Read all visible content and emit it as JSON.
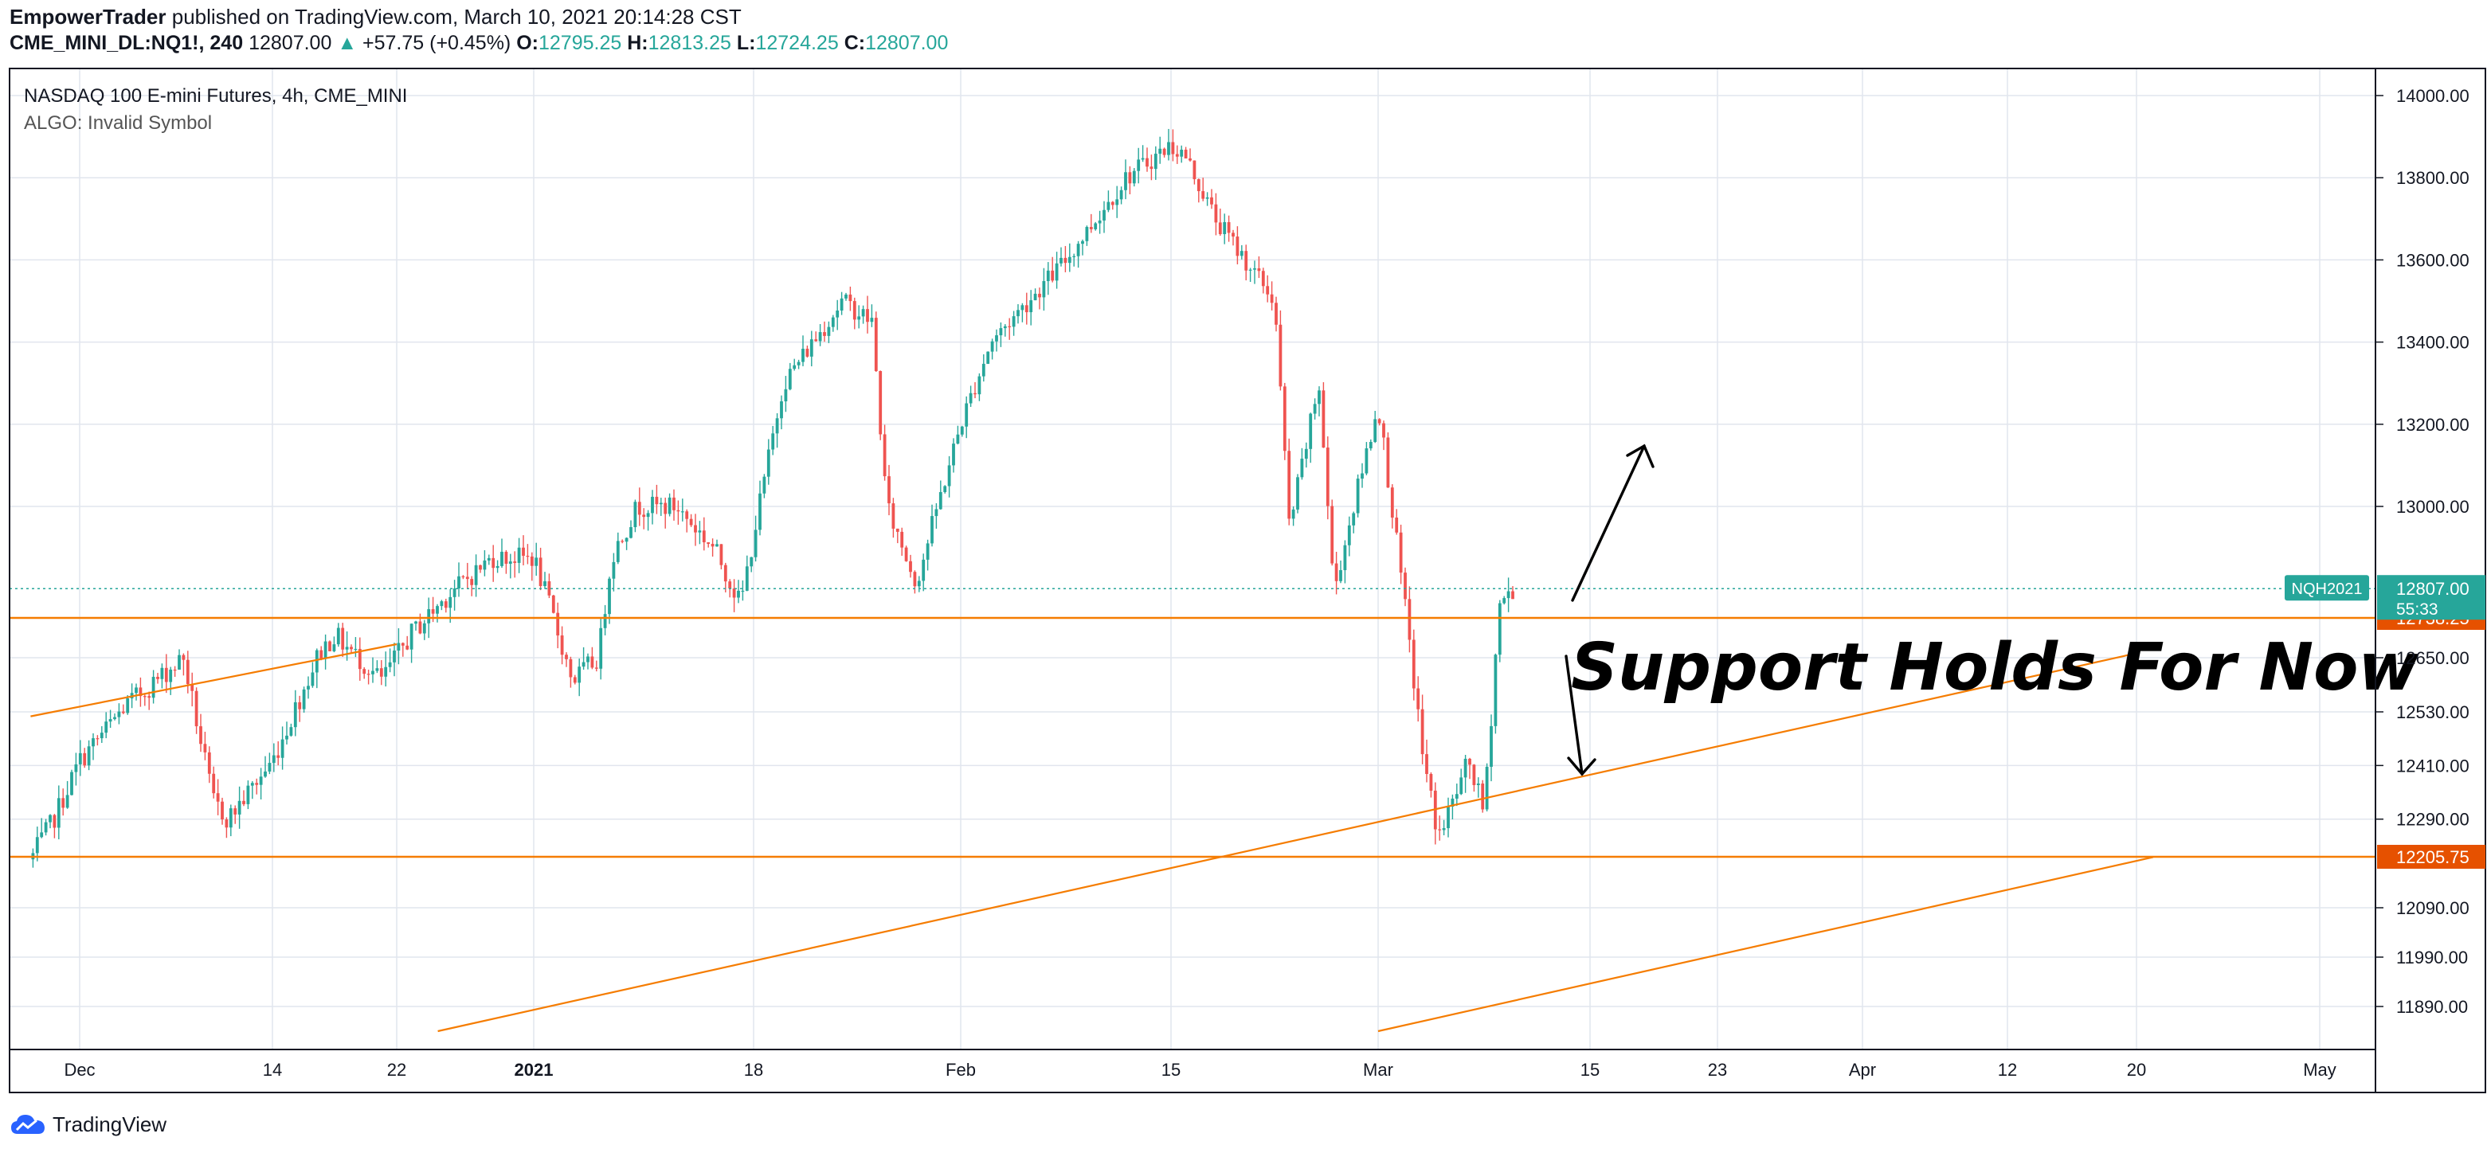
{
  "header": {
    "author": "EmpowerTrader",
    "published_text": "published on TradingView.com, March 10, 2021 20:14:28 CST",
    "symbol_interval": "CME_MINI_DL:NQ1!, 240",
    "last_price": "12807.00",
    "change_arrow": "▲",
    "change": "+57.75 (+0.45%)",
    "o_label": "O:",
    "o_value": "12795.25",
    "h_label": "H:",
    "h_value": "12813.25",
    "l_label": "L:",
    "l_value": "12724.25",
    "c_label": "C:",
    "c_value": "12807.00"
  },
  "legend": {
    "title": "NASDAQ 100 E-mini Futures, 4h, CME_MINI",
    "study": "ALGO: Invalid Symbol"
  },
  "footer": {
    "brand": "TradingView",
    "logo_icon": "tradingview-cloud-icon"
  },
  "colors": {
    "up": "#26a69a",
    "down": "#ef5350",
    "level_line": "#f57c00",
    "trend_line": "#f57c00",
    "price_tag": "#26a69a",
    "level_tag": "#e65100",
    "grid": "#e1e5ee",
    "text": "#131722"
  },
  "chart_data": {
    "type": "candlestick",
    "x_ticks": [
      "Dec",
      "14",
      "22",
      "2021",
      "18",
      "Feb",
      "15",
      "Mar",
      "15",
      "23",
      "Apr",
      "12",
      "20",
      "May"
    ],
    "y_ticks": [
      "14000.00",
      "13800.00",
      "13600.00",
      "13400.00",
      "13200.00",
      "13000.00",
      "12650.00",
      "12530.00",
      "12410.00",
      "12290.00",
      "12090.00",
      "11990.00",
      "11890.00"
    ],
    "y_tick_values": [
      14000,
      13800,
      13600,
      13400,
      13200,
      13000,
      12650,
      12530,
      12410,
      12290,
      12090,
      11990,
      11890
    ],
    "current_price": {
      "value": 12807.0,
      "label": "12807.00",
      "countdown": "55:33",
      "contract": "NQH2021"
    },
    "level_lines": [
      {
        "value": 12738.25,
        "label": "12738.25"
      },
      {
        "value": 12205.75,
        "label": "12205.75"
      }
    ],
    "trend_lines": [
      {
        "from": {
          "date": "2020-11-24",
          "price": 12520
        },
        "to": {
          "date": "2020-12-22",
          "price": 12680
        }
      },
      {
        "from": {
          "date": "2020-12-25",
          "price": 11840
        },
        "to": {
          "date": "2021-04-20",
          "price": 12660
        }
      },
      {
        "from": {
          "date": "2021-03-01",
          "price": 11840
        },
        "to": {
          "date": "2021-04-21",
          "price": 12205
        }
      }
    ],
    "annotation": "Support Holds For Now",
    "arrows": [
      "up",
      "down"
    ],
    "price_path": [
      [
        "2020-11-24",
        12200
      ],
      [
        "2020-11-27",
        12280
      ],
      [
        "2020-12-01",
        12420
      ],
      [
        "2020-12-04",
        12540
      ],
      [
        "2020-12-08",
        12650
      ],
      [
        "2020-12-10",
        12330
      ],
      [
        "2020-12-11",
        12290
      ],
      [
        "2020-12-14",
        12420
      ],
      [
        "2020-12-17",
        12660
      ],
      [
        "2020-12-18",
        12700
      ],
      [
        "2020-12-21",
        12600
      ],
      [
        "2020-12-23",
        12700
      ],
      [
        "2020-12-26",
        12800
      ],
      [
        "2020-12-29",
        12880
      ],
      [
        "2020-12-31",
        12880
      ],
      [
        "2021-01-01",
        12880
      ],
      [
        "2021-01-04",
        12600
      ],
      [
        "2021-01-06",
        12650
      ],
      [
        "2021-01-07",
        12880
      ],
      [
        "2021-01-09",
        13000
      ],
      [
        "2021-01-12",
        13000
      ],
      [
        "2021-01-15",
        12900
      ],
      [
        "2021-01-17",
        12770
      ],
      [
        "2021-01-20",
        13300
      ],
      [
        "2021-01-21",
        13350
      ],
      [
        "2021-01-24",
        13500
      ],
      [
        "2021-01-26",
        13450
      ],
      [
        "2021-01-27",
        13000
      ],
      [
        "2021-01-29",
        12820
      ],
      [
        "2021-02-01",
        13200
      ],
      [
        "2021-02-03",
        13400
      ],
      [
        "2021-02-08",
        13600
      ],
      [
        "2021-02-12",
        13800
      ],
      [
        "2021-02-15",
        13880
      ],
      [
        "2021-02-16",
        13850
      ],
      [
        "2021-02-18",
        13700
      ],
      [
        "2021-02-22",
        13500
      ],
      [
        "2021-02-23",
        12950
      ],
      [
        "2021-02-25",
        13300
      ],
      [
        "2021-02-26",
        12800
      ],
      [
        "2021-03-01",
        13250
      ],
      [
        "2021-03-03",
        12700
      ],
      [
        "2021-03-04",
        12420
      ],
      [
        "2021-03-05",
        12250
      ],
      [
        "2021-03-07",
        12420
      ],
      [
        "2021-03-08",
        12300
      ],
      [
        "2021-03-09",
        12770
      ],
      [
        "2021-03-10",
        12807
      ]
    ]
  }
}
